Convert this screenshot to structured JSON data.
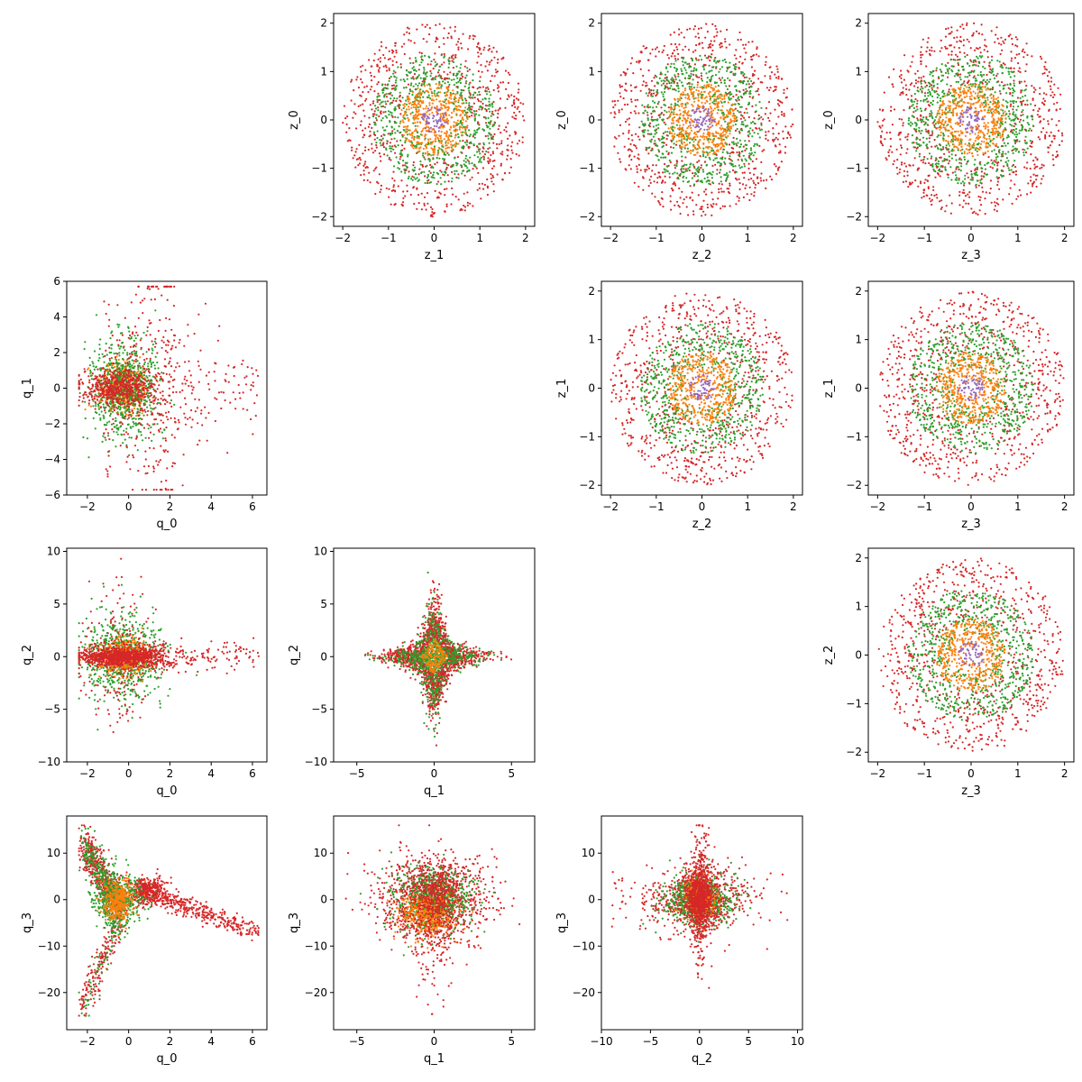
{
  "colors": {
    "band_1": "#9467bd",
    "band_2": "#ff7f0e",
    "band_3": "#2ca02c",
    "band_4": "#d62728"
  },
  "chart_data": [
    {
      "type": "scatter",
      "name": "z_1-z_0",
      "xlabel": "z_1",
      "ylabel": "z_0",
      "xlim": [
        -2.2,
        2.2
      ],
      "ylim": [
        -2.2,
        2.2
      ],
      "xticks": [
        -2,
        -1,
        0,
        1,
        2
      ],
      "yticks": [
        -2,
        -1,
        0,
        1,
        2
      ],
      "pattern": "rings",
      "params": {
        "r": [
          0.28,
          0.75,
          1.35,
          2.0
        ]
      }
    },
    {
      "type": "scatter",
      "name": "z_2-z_0",
      "xlabel": "z_2",
      "ylabel": "z_0",
      "xlim": [
        -2.2,
        2.2
      ],
      "ylim": [
        -2.2,
        2.2
      ],
      "xticks": [
        -2,
        -1,
        0,
        1,
        2
      ],
      "yticks": [
        -2,
        -1,
        0,
        1,
        2
      ],
      "pattern": "rings",
      "params": {
        "r": [
          0.28,
          0.75,
          1.35,
          2.0
        ]
      }
    },
    {
      "type": "scatter",
      "name": "z_3-z_0",
      "xlabel": "z_3",
      "ylabel": "z_0",
      "xlim": [
        -2.2,
        2.2
      ],
      "ylim": [
        -2.2,
        2.2
      ],
      "xticks": [
        -2,
        -1,
        0,
        1,
        2
      ],
      "yticks": [
        -2,
        -1,
        0,
        1,
        2
      ],
      "pattern": "rings",
      "params": {
        "r": [
          0.28,
          0.75,
          1.35,
          2.0
        ]
      }
    },
    {
      "type": "scatter",
      "name": "q_0-q_1",
      "xlabel": "q_0",
      "ylabel": "q_1",
      "xlim": [
        -3.0,
        6.7
      ],
      "ylim": [
        -6.0,
        6.0
      ],
      "xticks": [
        -2,
        0,
        2,
        4,
        6
      ],
      "yticks": [
        -6,
        -4,
        -2,
        0,
        2,
        4,
        6
      ],
      "pattern": "q01",
      "params": {
        "xrange": [
          -2.4,
          6.3
        ],
        "yrange": [
          -5.7,
          5.7
        ]
      }
    },
    {
      "type": "scatter",
      "name": "z_2-z_1",
      "xlabel": "z_2",
      "ylabel": "z_1",
      "xlim": [
        -2.2,
        2.2
      ],
      "ylim": [
        -2.2,
        2.2
      ],
      "xticks": [
        -2,
        -1,
        0,
        1,
        2
      ],
      "yticks": [
        -2,
        -1,
        0,
        1,
        2
      ],
      "pattern": "rings",
      "params": {
        "r": [
          0.28,
          0.75,
          1.35,
          2.0
        ]
      }
    },
    {
      "type": "scatter",
      "name": "z_3-z_1",
      "xlabel": "z_3",
      "ylabel": "z_1",
      "xlim": [
        -2.2,
        2.2
      ],
      "ylim": [
        -2.2,
        2.2
      ],
      "xticks": [
        -2,
        -1,
        0,
        1,
        2
      ],
      "yticks": [
        -2,
        -1,
        0,
        1,
        2
      ],
      "pattern": "rings",
      "params": {
        "r": [
          0.28,
          0.75,
          1.35,
          2.0
        ]
      }
    },
    {
      "type": "scatter",
      "name": "q_0-q_2",
      "xlabel": "q_0",
      "ylabel": "q_2",
      "xlim": [
        -3.0,
        6.7
      ],
      "ylim": [
        -10.0,
        10.3
      ],
      "xticks": [
        -2,
        0,
        2,
        4,
        6
      ],
      "yticks": [
        -10,
        -5,
        0,
        5,
        10
      ],
      "pattern": "q02",
      "params": {
        "xrange": [
          -2.4,
          6.3
        ],
        "yrange": [
          -9.0,
          9.3
        ]
      }
    },
    {
      "type": "scatter",
      "name": "q_1-q_2",
      "xlabel": "q_1",
      "ylabel": "q_2",
      "xlim": [
        -6.5,
        6.5
      ],
      "ylim": [
        -10.0,
        10.3
      ],
      "xticks": [
        -5,
        0,
        5
      ],
      "yticks": [
        -10,
        -5,
        0,
        5,
        10
      ],
      "pattern": "star",
      "params": {
        "xrange": [
          -5.7,
          5.7
        ],
        "yrange": [
          -9.0,
          9.3
        ]
      }
    },
    {
      "type": "scatter",
      "name": "z_3-z_2",
      "xlabel": "z_3",
      "ylabel": "z_2",
      "xlim": [
        -2.2,
        2.2
      ],
      "ylim": [
        -2.2,
        2.2
      ],
      "xticks": [
        -2,
        -1,
        0,
        1,
        2
      ],
      "yticks": [
        -2,
        -1,
        0,
        1,
        2
      ],
      "pattern": "rings",
      "params": {
        "r": [
          0.28,
          0.75,
          1.35,
          2.0
        ]
      }
    },
    {
      "type": "scatter",
      "name": "q_0-q_3",
      "xlabel": "q_0",
      "ylabel": "q_3",
      "xlim": [
        -3.0,
        6.7
      ],
      "ylim": [
        -28.0,
        18.0
      ],
      "xticks": [
        -2,
        0,
        2,
        4,
        6
      ],
      "yticks": [
        -20,
        -10,
        0,
        10
      ],
      "pattern": "q03",
      "params": {
        "xrange": [
          -2.4,
          6.3
        ],
        "yrange": [
          -25.0,
          16.0
        ]
      }
    },
    {
      "type": "scatter",
      "name": "q_1-q_3",
      "xlabel": "q_1",
      "ylabel": "q_3",
      "xlim": [
        -6.5,
        6.5
      ],
      "ylim": [
        -28.0,
        18.0
      ],
      "xticks": [
        -5,
        0,
        5
      ],
      "yticks": [
        -20,
        -10,
        0,
        10
      ],
      "pattern": "q13",
      "params": {
        "xrange": [
          -5.7,
          5.7
        ],
        "yrange": [
          -25.0,
          16.0
        ]
      }
    },
    {
      "type": "scatter",
      "name": "q_2-q_3",
      "xlabel": "q_2",
      "ylabel": "q_3",
      "xlim": [
        -10.0,
        10.5
      ],
      "ylim": [
        -28.0,
        18.0
      ],
      "xticks": [
        -10,
        -5,
        0,
        5,
        10
      ],
      "yticks": [
        -20,
        -10,
        0,
        10
      ],
      "pattern": "q23",
      "params": {
        "xrange": [
          -9.3,
          9.3
        ],
        "yrange": [
          -25.0,
          16.0
        ]
      }
    }
  ]
}
